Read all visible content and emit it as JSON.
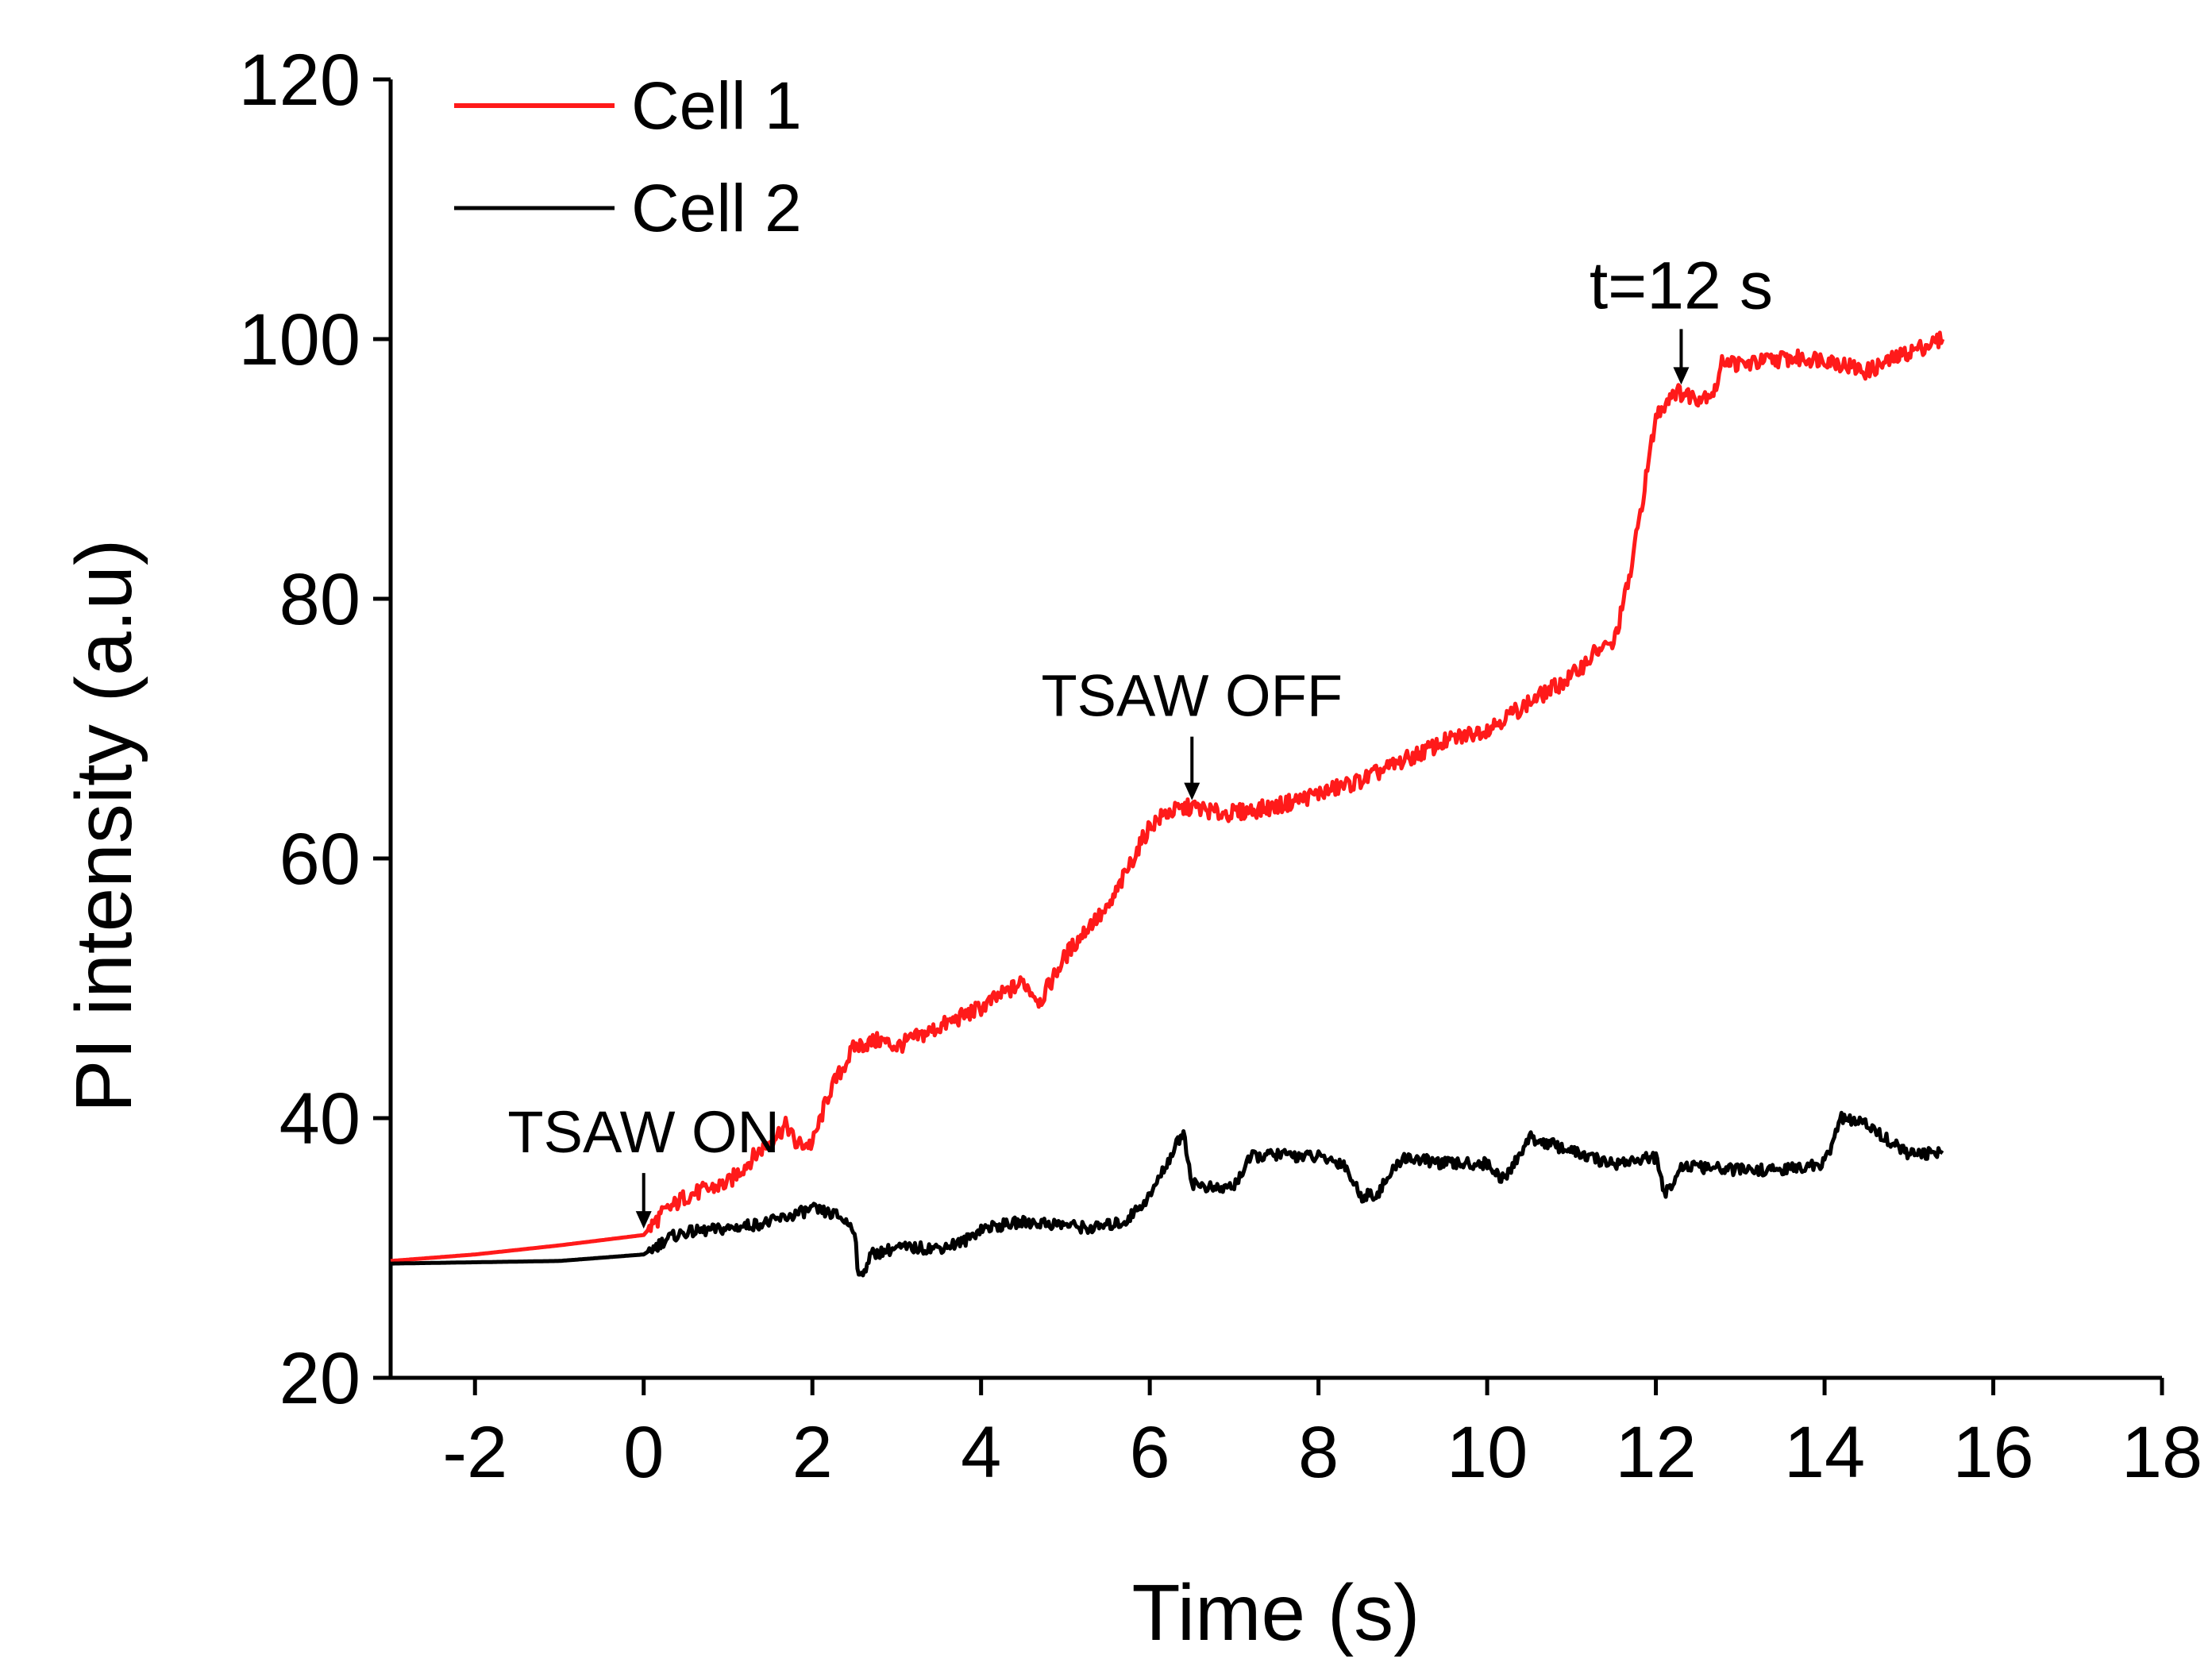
{
  "chart_data": {
    "type": "line",
    "title": "",
    "xlabel": "Time (s)",
    "ylabel": "PI intensity (a.u)",
    "xlim": [
      -3,
      18
    ],
    "ylim": [
      20,
      120
    ],
    "xticks": [
      -2,
      0,
      2,
      4,
      6,
      8,
      10,
      12,
      14,
      16,
      18
    ],
    "yticks": [
      20,
      40,
      60,
      80,
      100,
      120
    ],
    "legend_position": "top-left",
    "series": [
      {
        "name": "Cell 1",
        "color": "#ff1a1a",
        "x": [
          -3,
          -2,
          -1,
          0,
          0.2,
          0.5,
          1.0,
          1.3,
          1.7,
          1.8,
          2.0,
          2.2,
          2.5,
          2.8,
          3.0,
          3.5,
          4.0,
          4.5,
          4.7,
          5.0,
          5.3,
          5.5,
          5.8,
          6.0,
          6.2,
          6.5,
          6.8,
          7.0,
          7.5,
          8.0,
          8.5,
          9.0,
          9.5,
          10.0,
          10.5,
          11.0,
          11.3,
          11.5,
          11.7,
          11.9,
          12.0,
          12.2,
          12.5,
          12.7,
          12.8,
          13.0,
          13.5,
          14.0,
          14.5,
          15.0,
          15.4
        ],
        "y": [
          29,
          29.5,
          30.2,
          31,
          32.5,
          34,
          35,
          37,
          39.5,
          38,
          38,
          42,
          45.5,
          46,
          45.5,
          47,
          48.5,
          50.5,
          49,
          52.5,
          55,
          56,
          60,
          62.5,
          63.5,
          64,
          63.5,
          63.5,
          64,
          65,
          66,
          67.5,
          69,
          70,
          72,
          74,
          76,
          76.5,
          82,
          90,
          94,
          96,
          95.5,
          96,
          98.5,
          98,
          98.5,
          98.5,
          97.5,
          99,
          100
        ]
      },
      {
        "name": "Cell 2",
        "color": "#000000",
        "x": [
          -3,
          -2,
          -1,
          0,
          0.3,
          0.5,
          1.0,
          1.5,
          2.0,
          2.3,
          2.5,
          2.55,
          2.7,
          3.0,
          3.5,
          3.8,
          4.0,
          4.5,
          5.0,
          5.3,
          5.7,
          6.0,
          6.2,
          6.4,
          6.5,
          6.8,
          7.0,
          7.2,
          7.5,
          8.0,
          8.3,
          8.5,
          8.7,
          9.0,
          9.5,
          10.0,
          10.2,
          10.5,
          11.0,
          11.1,
          11.3,
          11.5,
          12.0,
          12.1,
          12.3,
          12.5,
          13.0,
          13.5,
          14.0,
          14.2,
          14.5,
          15.0,
          15.4
        ],
        "y": [
          28.8,
          28.9,
          29,
          29.5,
          30.8,
          31.2,
          31.5,
          32,
          33,
          32.5,
          31.5,
          27.5,
          29.5,
          30,
          30,
          30.5,
          31.5,
          32,
          31.8,
          31.5,
          32,
          34,
          36.5,
          39,
          35,
          34.5,
          34.8,
          37,
          37.2,
          37,
          36.5,
          34,
          34.2,
          37,
          36.5,
          36.5,
          35.2,
          38.5,
          37.5,
          37.2,
          36.8,
          36.5,
          37,
          34,
          36.3,
          36.2,
          36,
          36,
          36.5,
          40,
          39.5,
          37.2,
          37.3
        ]
      }
    ],
    "annotations": [
      {
        "text": "TSAW ON",
        "x": 0.0,
        "y": 31
      },
      {
        "text": "TSAW OFF",
        "x": 6.5,
        "y": 64
      },
      {
        "text": "t=12 s",
        "x": 12.3,
        "y": 96
      }
    ]
  }
}
